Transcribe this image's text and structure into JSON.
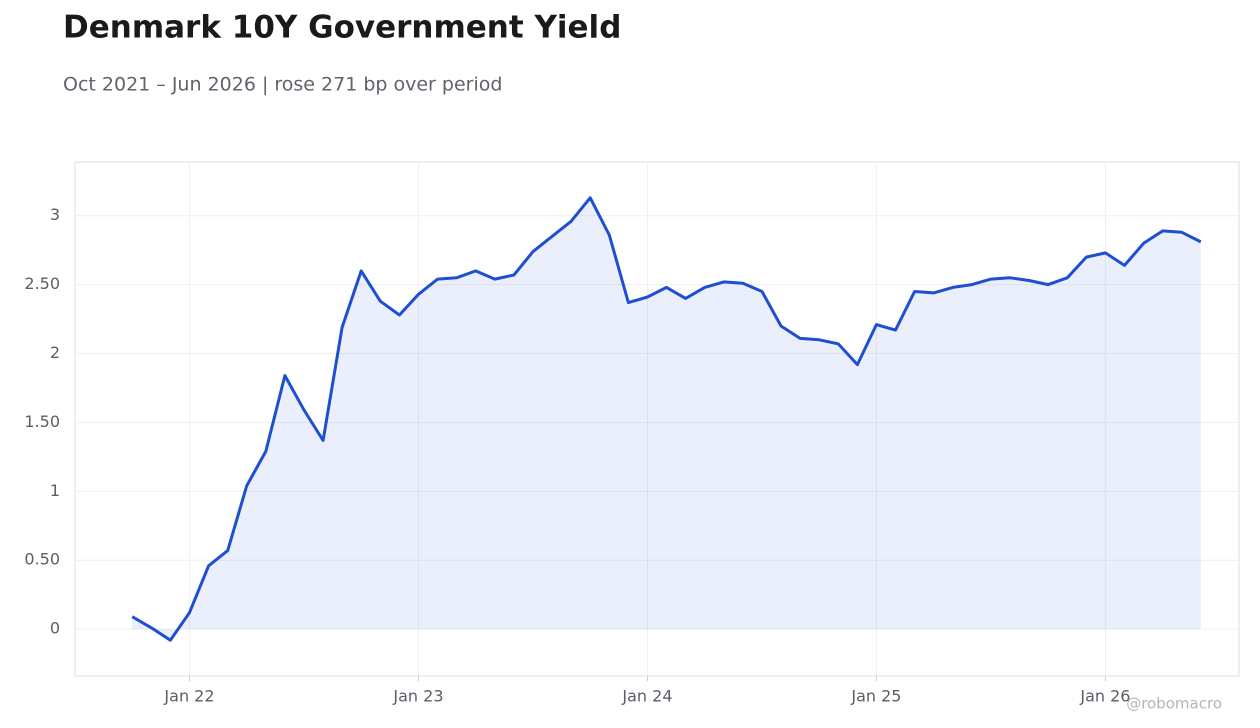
{
  "chart_data": {
    "type": "area-line",
    "title": "Denmark 10Y Government Yield",
    "subtitle": "Oct 2021 – Jun 2026 | rose 271 bp over period",
    "watermark": "@robomacro",
    "color": "#1f4fd1",
    "fill": true,
    "grid": true,
    "x": [
      "2021-10",
      "2021-11",
      "2021-12",
      "2022-01",
      "2022-02",
      "2022-03",
      "2022-04",
      "2022-05",
      "2022-06",
      "2022-07",
      "2022-08",
      "2022-09",
      "2022-10",
      "2022-11",
      "2022-12",
      "2023-01",
      "2023-02",
      "2023-03",
      "2023-04",
      "2023-05",
      "2023-06",
      "2023-07",
      "2023-08",
      "2023-09",
      "2023-10",
      "2023-11",
      "2023-12",
      "2024-01",
      "2024-02",
      "2024-03",
      "2024-04",
      "2024-05",
      "2024-06",
      "2024-07",
      "2024-08",
      "2024-09",
      "2024-10",
      "2024-11",
      "2024-12",
      "2025-01",
      "2025-02",
      "2025-03",
      "2025-04",
      "2025-05",
      "2025-06",
      "2025-07",
      "2025-08",
      "2025-09",
      "2025-10",
      "2025-11",
      "2025-12",
      "2026-01",
      "2026-02",
      "2026-03",
      "2026-04",
      "2026-05",
      "2026-06"
    ],
    "values": [
      0.09,
      0.01,
      -0.08,
      0.12,
      0.46,
      0.57,
      1.04,
      1.29,
      1.84,
      1.59,
      1.37,
      2.19,
      2.6,
      2.38,
      2.28,
      2.43,
      2.54,
      2.55,
      2.6,
      2.54,
      2.57,
      2.74,
      2.85,
      2.96,
      3.13,
      2.86,
      2.37,
      2.41,
      2.48,
      2.4,
      2.48,
      2.52,
      2.51,
      2.45,
      2.2,
      2.11,
      2.1,
      2.07,
      1.92,
      2.21,
      2.17,
      2.45,
      2.44,
      2.48,
      2.5,
      2.54,
      2.55,
      2.53,
      2.5,
      2.55,
      2.7,
      2.73,
      2.64,
      2.8,
      2.89,
      2.88,
      2.81
    ],
    "xlim": [
      "2021-07",
      "2026-08"
    ],
    "xticks": [
      {
        "value": "2022-01",
        "label": "Jan 22"
      },
      {
        "value": "2023-01",
        "label": "Jan 23"
      },
      {
        "value": "2024-01",
        "label": "Jan 24"
      },
      {
        "value": "2025-01",
        "label": "Jan 25"
      },
      {
        "value": "2026-01",
        "label": "Jan 26"
      }
    ],
    "ylim": [
      -0.34,
      3.39
    ],
    "yticks": [
      0,
      {
        "value": 0.5,
        "label": "0.50"
      },
      1,
      {
        "value": 1.5,
        "label": "1.50"
      },
      2,
      {
        "value": 2.5,
        "label": "2.50"
      },
      3
    ]
  }
}
